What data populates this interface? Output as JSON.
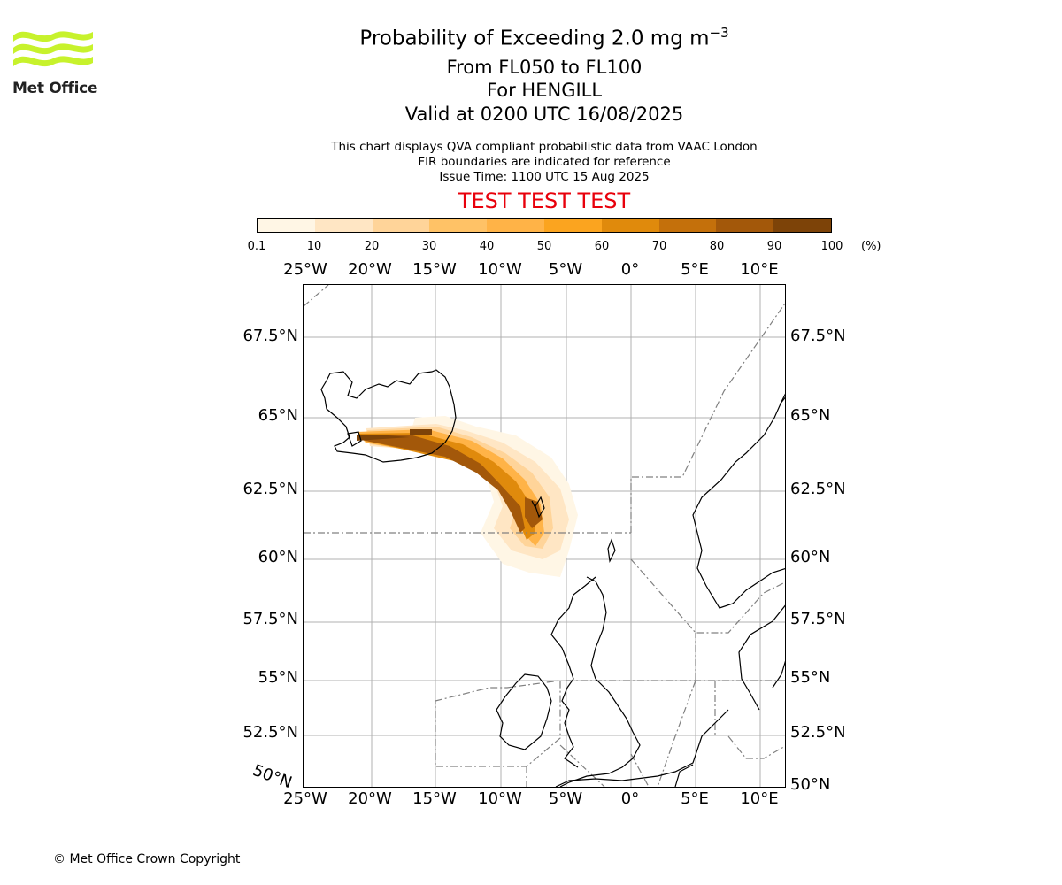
{
  "header": {
    "title_prefix": "Probability of Exceeding 2.0 mg m",
    "title_superscript": "−3",
    "flight_levels": "From FL050 to FL100",
    "location": "For HENGILL",
    "valid_time": "Valid at 0200 UTC 16/08/2025",
    "info_line_1": "This chart displays QVA compliant probabilistic data from VAAC London",
    "info_line_2": "FIR boundaries are indicated for reference",
    "info_line_3": "Issue Time: 1100 UTC 15 Aug 2025",
    "banner": "TEST TEST TEST",
    "banner_color": "#e8000b"
  },
  "logo": {
    "text": "Met Office",
    "icon": "met-office-wave-logo",
    "accent_color": "#c7f22c"
  },
  "colorbar": {
    "ticks": [
      "0.1",
      "10",
      "20",
      "30",
      "40",
      "50",
      "60",
      "70",
      "80",
      "90",
      "100"
    ],
    "unit": "(%)",
    "colors": [
      "#fff6e5",
      "#ffe6c4",
      "#ffd499",
      "#ffc266",
      "#ffb347",
      "#fba41f",
      "#e08a0c",
      "#c4700b",
      "#a3580a",
      "#7d4308"
    ]
  },
  "map": {
    "lon_labels": [
      "25°W",
      "20°W",
      "15°W",
      "10°W",
      "5°W",
      "0°",
      "5°E",
      "10°E"
    ],
    "lat_labels": [
      "67.5°N",
      "65°N",
      "62.5°N",
      "60°N",
      "57.5°N",
      "55°N",
      "52.5°N",
      "50°N"
    ],
    "corner_label": "50°N",
    "coastline_color": "#000000",
    "fir_boundary_color": "#808080",
    "grid_color": "#b0b0b0"
  },
  "footer": {
    "copyright": "© Met Office Crown Copyright"
  }
}
